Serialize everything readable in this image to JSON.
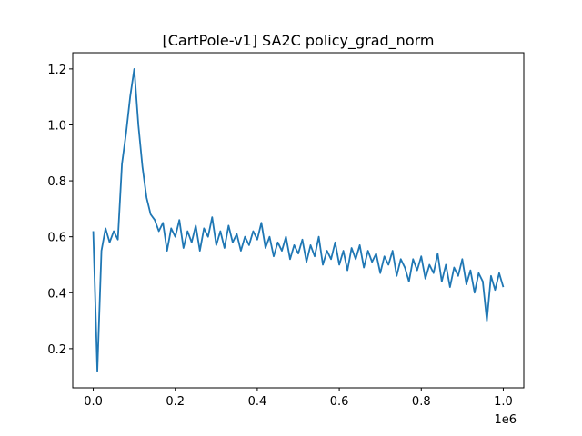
{
  "chart_data": {
    "type": "line",
    "title": "[CartPole-v1] SA2C policy_grad_norm",
    "x_offset_label": "1e6",
    "x": [
      0,
      10000,
      20000,
      30000,
      40000,
      50000,
      60000,
      70000,
      80000,
      90000,
      100000,
      110000,
      120000,
      130000,
      140000,
      150000,
      160000,
      170000,
      180000,
      190000,
      200000,
      210000,
      220000,
      230000,
      240000,
      250000,
      260000,
      270000,
      280000,
      290000,
      300000,
      310000,
      320000,
      330000,
      340000,
      350000,
      360000,
      370000,
      380000,
      390000,
      400000,
      410000,
      420000,
      430000,
      440000,
      450000,
      460000,
      470000,
      480000,
      490000,
      500000,
      510000,
      520000,
      530000,
      540000,
      550000,
      560000,
      570000,
      580000,
      590000,
      600000,
      610000,
      620000,
      630000,
      640000,
      650000,
      660000,
      670000,
      680000,
      690000,
      700000,
      710000,
      720000,
      730000,
      740000,
      750000,
      760000,
      770000,
      780000,
      790000,
      800000,
      810000,
      820000,
      830000,
      840000,
      850000,
      860000,
      870000,
      880000,
      890000,
      900000,
      910000,
      920000,
      930000,
      940000,
      950000,
      960000,
      970000,
      980000,
      990000,
      1000000
    ],
    "series": [
      {
        "color": "#1f77b4",
        "values": [
          0.62,
          0.12,
          0.55,
          0.63,
          0.58,
          0.62,
          0.59,
          0.86,
          0.97,
          1.1,
          1.2,
          1.0,
          0.85,
          0.74,
          0.68,
          0.66,
          0.62,
          0.65,
          0.55,
          0.63,
          0.6,
          0.66,
          0.56,
          0.62,
          0.58,
          0.64,
          0.55,
          0.63,
          0.6,
          0.67,
          0.57,
          0.62,
          0.56,
          0.64,
          0.58,
          0.61,
          0.55,
          0.6,
          0.57,
          0.62,
          0.59,
          0.65,
          0.56,
          0.6,
          0.53,
          0.58,
          0.55,
          0.6,
          0.52,
          0.57,
          0.54,
          0.59,
          0.51,
          0.57,
          0.53,
          0.6,
          0.5,
          0.55,
          0.52,
          0.58,
          0.5,
          0.55,
          0.48,
          0.56,
          0.52,
          0.57,
          0.49,
          0.55,
          0.51,
          0.54,
          0.47,
          0.53,
          0.5,
          0.55,
          0.46,
          0.52,
          0.49,
          0.44,
          0.52,
          0.48,
          0.53,
          0.45,
          0.5,
          0.47,
          0.54,
          0.44,
          0.5,
          0.42,
          0.49,
          0.46,
          0.52,
          0.43,
          0.48,
          0.4,
          0.47,
          0.44,
          0.3,
          0.46,
          0.41,
          0.47,
          0.42
        ]
      }
    ],
    "xlim": [
      -50000,
      1050000
    ],
    "ylim": [
      0.06,
      1.258
    ],
    "xticks": [
      {
        "value": 0,
        "label": "0.0"
      },
      {
        "value": 200000,
        "label": "0.2"
      },
      {
        "value": 400000,
        "label": "0.4"
      },
      {
        "value": 600000,
        "label": "0.6"
      },
      {
        "value": 800000,
        "label": "0.8"
      },
      {
        "value": 1000000,
        "label": "1.0"
      }
    ],
    "yticks": [
      0.2,
      0.4,
      0.6,
      0.8,
      {
        "value": 1,
        "label": "1.0"
      },
      1.2
    ]
  }
}
